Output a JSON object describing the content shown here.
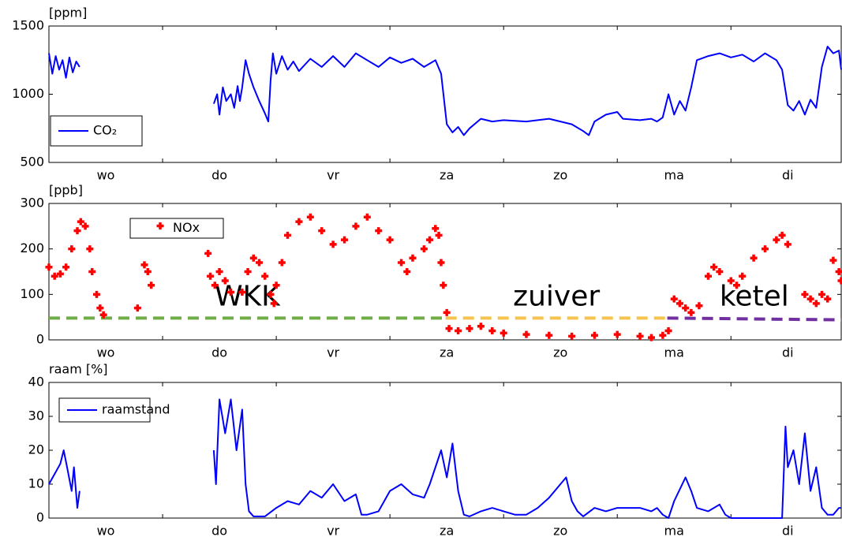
{
  "chart_data": [
    {
      "type": "line",
      "ylabel": "[ppm]",
      "xlim": [
        0,
        6.97
      ],
      "ylim": [
        500,
        1500
      ],
      "yticks": [
        500,
        1000,
        1500
      ],
      "xticks": [
        {
          "value": 0.5,
          "label": "wo"
        },
        {
          "value": 1.5,
          "label": "do"
        },
        {
          "value": 2.5,
          "label": "vr"
        },
        {
          "value": 3.5,
          "label": "za"
        },
        {
          "value": 4.5,
          "label": "zo"
        },
        {
          "value": 5.5,
          "label": "ma"
        },
        {
          "value": 6.5,
          "label": "di"
        }
      ],
      "xminorticks": [
        1,
        2,
        3,
        4,
        5,
        6
      ],
      "series": [
        {
          "name": "CO₂",
          "color": "#0000ff",
          "x": [
            0,
            0.03,
            0.06,
            0.09,
            0.12,
            0.15,
            0.18,
            0.21,
            0.24,
            0.27,
            0.3,
            1.45,
            1.48,
            1.5,
            1.53,
            1.56,
            1.6,
            1.63,
            1.66,
            1.68,
            1.7,
            1.73,
            1.76,
            1.8,
            1.85,
            1.9,
            1.93,
            1.95,
            1.97,
            2.0,
            2.05,
            2.1,
            2.15,
            2.2,
            2.3,
            2.4,
            2.5,
            2.6,
            2.7,
            2.8,
            2.9,
            3.0,
            3.1,
            3.2,
            3.3,
            3.4,
            3.45,
            3.5,
            3.55,
            3.6,
            3.65,
            3.7,
            3.8,
            3.9,
            4.0,
            4.2,
            4.4,
            4.6,
            4.7,
            4.75,
            4.8,
            4.9,
            5.0,
            5.05,
            5.2,
            5.3,
            5.35,
            5.4,
            5.45,
            5.5,
            5.55,
            5.6,
            5.65,
            5.7,
            5.8,
            5.9,
            6.0,
            6.1,
            6.2,
            6.3,
            6.4,
            6.45,
            6.5,
            6.55,
            6.6,
            6.65,
            6.7,
            6.75,
            6.8,
            6.85,
            6.9,
            6.95,
            6.97
          ],
          "values": [
            1300,
            1150,
            1280,
            1180,
            1250,
            1120,
            1270,
            1160,
            1240,
            1200,
            null,
            930,
            1000,
            850,
            1050,
            950,
            1000,
            900,
            1060,
            950,
            1050,
            1250,
            1150,
            1050,
            950,
            860,
            800,
            1100,
            1300,
            1150,
            1280,
            1180,
            1240,
            1170,
            1260,
            1200,
            1280,
            1200,
            1300,
            1250,
            1200,
            1270,
            1230,
            1260,
            1200,
            1250,
            1150,
            780,
            720,
            760,
            700,
            750,
            820,
            800,
            810,
            800,
            820,
            780,
            730,
            700,
            800,
            850,
            870,
            820,
            810,
            820,
            800,
            830,
            1000,
            850,
            950,
            880,
            1050,
            1250,
            1280,
            1300,
            1270,
            1290,
            1240,
            1300,
            1250,
            1180,
            920,
            880,
            950,
            850,
            960,
            900,
            1200,
            1350,
            1300,
            1320,
            1180
          ]
        }
      ]
    },
    {
      "type": "scatter",
      "ylabel": "[ppb]",
      "xlim": [
        0,
        6.97
      ],
      "ylim": [
        0,
        300
      ],
      "yticks": [
        0,
        100,
        200,
        300
      ],
      "xticks": [
        {
          "value": 0.5,
          "label": "wo"
        },
        {
          "value": 1.5,
          "label": "do"
        },
        {
          "value": 2.5,
          "label": "vr"
        },
        {
          "value": 3.5,
          "label": "za"
        },
        {
          "value": 4.5,
          "label": "zo"
        },
        {
          "value": 5.5,
          "label": "ma"
        },
        {
          "value": 6.5,
          "label": "di"
        }
      ],
      "xminorticks": [
        1,
        2,
        3,
        4,
        5,
        6
      ],
      "series": [
        {
          "name": "NOx",
          "color": "#ff0000",
          "x": [
            0,
            0.05,
            0.1,
            0.15,
            0.2,
            0.25,
            0.28,
            0.32,
            0.36,
            0.38,
            0.42,
            0.45,
            0.48,
            0.78,
            0.84,
            0.87,
            0.9,
            1.4,
            1.42,
            1.46,
            1.5,
            1.55,
            1.6,
            1.7,
            1.75,
            1.8,
            1.85,
            1.9,
            1.95,
            1.98,
            2.0,
            2.05,
            2.1,
            2.2,
            2.3,
            2.4,
            2.5,
            2.6,
            2.7,
            2.8,
            2.9,
            3.0,
            3.1,
            3.15,
            3.2,
            3.3,
            3.35,
            3.4,
            3.43,
            3.45,
            3.47,
            3.5,
            3.52,
            3.6,
            3.7,
            3.8,
            3.9,
            4.0,
            4.2,
            4.4,
            4.6,
            4.8,
            5.0,
            5.2,
            5.3,
            5.4,
            5.45,
            5.5,
            5.55,
            5.6,
            5.65,
            5.72,
            5.8,
            5.85,
            5.9,
            6.0,
            6.05,
            6.1,
            6.2,
            6.3,
            6.4,
            6.45,
            6.5,
            6.65,
            6.7,
            6.75,
            6.8,
            6.85,
            6.9,
            6.95,
            6.97
          ],
          "values": [
            160,
            140,
            145,
            160,
            200,
            240,
            260,
            250,
            200,
            150,
            100,
            70,
            55,
            70,
            165,
            150,
            120,
            190,
            140,
            120,
            150,
            130,
            105,
            105,
            150,
            180,
            170,
            140,
            100,
            80,
            120,
            170,
            230,
            260,
            270,
            240,
            210,
            220,
            250,
            270,
            240,
            220,
            170,
            150,
            180,
            200,
            220,
            245,
            230,
            170,
            120,
            60,
            25,
            20,
            25,
            30,
            20,
            15,
            12,
            10,
            8,
            10,
            12,
            8,
            5,
            10,
            20,
            90,
            80,
            70,
            60,
            75,
            140,
            160,
            150,
            130,
            120,
            140,
            180,
            200,
            220,
            230,
            210,
            100,
            90,
            80,
            100,
            90,
            175,
            150,
            130
          ]
        }
      ],
      "reference_lines": [
        {
          "label": "WKK",
          "color": "#70ad47",
          "x": [
            0,
            3.49
          ],
          "values": [
            48,
            48
          ]
        },
        {
          "label": "zuiver",
          "color": "#f7c34f",
          "x": [
            3.49,
            5.44
          ],
          "values": [
            48,
            48
          ]
        },
        {
          "label": "ketel",
          "color": "#7030a0",
          "x": [
            5.44,
            6.97
          ],
          "values": [
            48,
            44
          ]
        }
      ]
    },
    {
      "type": "line",
      "ylabel": "raam [%]",
      "xlim": [
        0,
        6.97
      ],
      "ylim": [
        0,
        40
      ],
      "yticks": [
        0,
        10,
        20,
        30,
        40
      ],
      "xticks": [
        {
          "value": 0.5,
          "label": "wo"
        },
        {
          "value": 1.5,
          "label": "do"
        },
        {
          "value": 2.5,
          "label": "vr"
        },
        {
          "value": 3.5,
          "label": "za"
        },
        {
          "value": 4.5,
          "label": "zo"
        },
        {
          "value": 5.5,
          "label": "ma"
        },
        {
          "value": 6.5,
          "label": "di"
        }
      ],
      "xminorticks": [
        1,
        2,
        3,
        4,
        5,
        6
      ],
      "series": [
        {
          "name": "raamstand",
          "color": "#0000ff",
          "x": [
            0,
            0.05,
            0.1,
            0.13,
            0.16,
            0.2,
            0.22,
            0.25,
            0.27,
            0.3,
            1.45,
            1.47,
            1.5,
            1.55,
            1.6,
            1.65,
            1.7,
            1.73,
            1.76,
            1.8,
            1.9,
            2.0,
            2.1,
            2.2,
            2.3,
            2.4,
            2.5,
            2.6,
            2.7,
            2.75,
            2.8,
            2.9,
            3.0,
            3.1,
            3.2,
            3.3,
            3.35,
            3.4,
            3.45,
            3.5,
            3.55,
            3.6,
            3.65,
            3.7,
            3.8,
            3.9,
            4.0,
            4.1,
            4.2,
            4.3,
            4.4,
            4.5,
            4.55,
            4.6,
            4.65,
            4.7,
            4.8,
            4.9,
            5.0,
            5.2,
            5.3,
            5.35,
            5.4,
            5.45,
            5.5,
            5.6,
            5.65,
            5.7,
            5.8,
            5.9,
            5.95,
            6.0,
            6.45,
            6.48,
            6.5,
            6.55,
            6.6,
            6.65,
            6.7,
            6.75,
            6.8,
            6.85,
            6.9,
            6.95,
            6.97
          ],
          "values": [
            10,
            13,
            16,
            20,
            15,
            8,
            15,
            3,
            8,
            null,
            20,
            10,
            35,
            25,
            35,
            20,
            32,
            10,
            2,
            0.5,
            0.5,
            3,
            5,
            4,
            8,
            6,
            10,
            5,
            7,
            1,
            1,
            2,
            8,
            10,
            7,
            6,
            10,
            15,
            20,
            12,
            22,
            8,
            1,
            0.5,
            2,
            3,
            2,
            1,
            1,
            3,
            6,
            10,
            12,
            5,
            2,
            0.5,
            3,
            2,
            3,
            3,
            2,
            3,
            1,
            0,
            5,
            12,
            8,
            3,
            2,
            4,
            1,
            0,
            0,
            27,
            15,
            20,
            10,
            25,
            8,
            15,
            3,
            1,
            1,
            3,
            3
          ]
        }
      ]
    }
  ]
}
